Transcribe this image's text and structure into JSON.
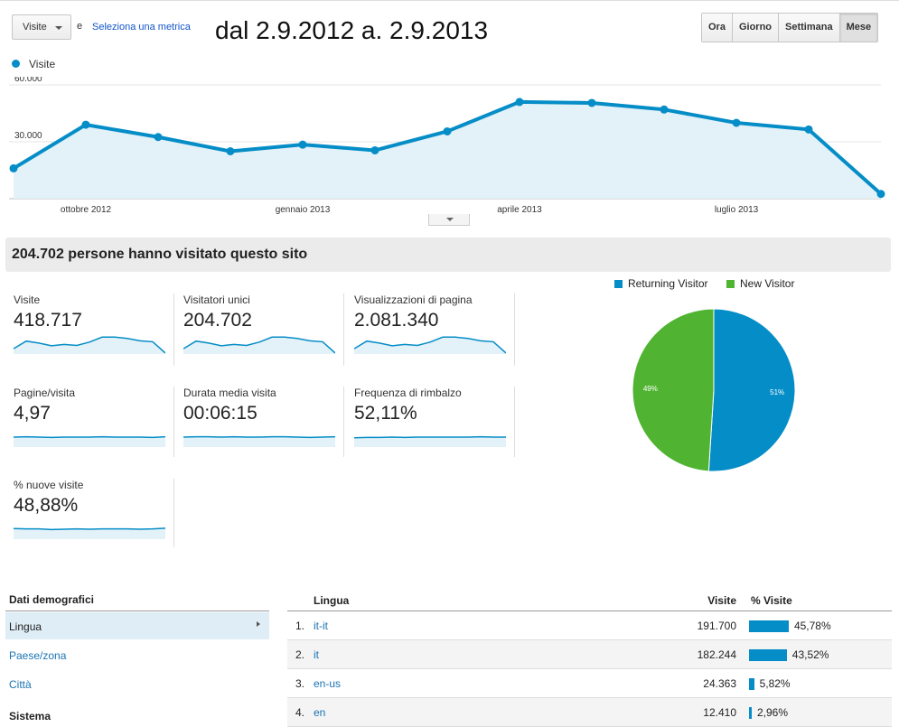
{
  "header": {
    "metric_select": "Visite",
    "and_label": "e",
    "select_metric_link": "Seleziona una metrica",
    "date_range": "dal 2.9.2012 a. 2.9.2013",
    "periods": [
      {
        "label": "Ora",
        "active": false
      },
      {
        "label": "Giorno",
        "active": false
      },
      {
        "label": "Settimana",
        "active": false
      },
      {
        "label": "Mese",
        "active": true
      }
    ]
  },
  "chart_data": {
    "type": "area",
    "series": [
      {
        "name": "Visite",
        "color": "#058dc7",
        "values": [
          16000,
          39000,
          32500,
          25000,
          28500,
          25500,
          35500,
          51000,
          50500,
          47000,
          40000,
          36500,
          2500
        ]
      }
    ],
    "x_ticks": [
      "ottobre 2012",
      "gennaio 2013",
      "aprile 2013",
      "luglio 2013"
    ],
    "y_ticks": [
      "60.000",
      "30.000"
    ],
    "ylim": [
      0,
      60000
    ],
    "grid": true
  },
  "summary": "204.702 persone hanno visitato questo sito",
  "metrics": [
    {
      "label": "Visite",
      "value": "418.717",
      "trend": [
        16,
        39,
        33,
        25,
        29,
        26,
        36,
        51,
        51,
        47,
        40,
        37,
        3
      ]
    },
    {
      "label": "Visitatori unici",
      "value": "204.702",
      "trend": [
        16,
        39,
        33,
        25,
        29,
        26,
        36,
        51,
        51,
        47,
        40,
        37,
        3
      ]
    },
    {
      "label": "Visualizzazioni di pagina",
      "value": "2.081.340",
      "trend": [
        16,
        39,
        33,
        25,
        29,
        26,
        36,
        51,
        51,
        47,
        40,
        37,
        3
      ]
    },
    {
      "label": "Pagine/visita",
      "value": "4,97",
      "trend": [
        30,
        31,
        30,
        29,
        30,
        30,
        30,
        31,
        30,
        30,
        30,
        29,
        31
      ]
    },
    {
      "label": "Durata media visita",
      "value": "00:06:15",
      "trend": [
        30,
        31,
        31,
        30,
        31,
        30,
        30,
        31,
        31,
        30,
        29,
        30,
        31
      ]
    },
    {
      "label": "Frequenza di rimbalzo",
      "value": "52,11%",
      "trend": [
        28,
        29,
        29,
        30,
        29,
        30,
        30,
        30,
        30,
        30,
        31,
        30,
        30
      ]
    },
    {
      "label": "% nuove visite",
      "value": "48,88%",
      "trend": [
        32,
        31,
        31,
        29,
        30,
        31,
        30,
        31,
        31,
        31,
        30,
        31,
        33
      ]
    }
  ],
  "pie": {
    "legend": [
      {
        "label": "Returning Visitor",
        "color": "#058dc7"
      },
      {
        "label": "New Visitor",
        "color": "#50b432"
      }
    ],
    "slices": [
      {
        "label": "51%",
        "value": 51,
        "color": "#058dc7"
      },
      {
        "label": "49%",
        "value": 49,
        "color": "#50b432"
      }
    ]
  },
  "demographics": {
    "header": "Dati demografici",
    "items": [
      {
        "label": "Lingua",
        "active": true
      },
      {
        "label": "Paese/zona",
        "active": false
      },
      {
        "label": "Città",
        "active": false
      }
    ],
    "system_header": "Sistema"
  },
  "language_table": {
    "headers": {
      "language": "Lingua",
      "visits": "Visite",
      "pct": "% Visite"
    },
    "rows": [
      {
        "index": "1.",
        "language": "it-it",
        "visits": "191.700",
        "pct": "45,78%",
        "pct_value": 45.78
      },
      {
        "index": "2.",
        "language": "it",
        "visits": "182.244",
        "pct": "43,52%",
        "pct_value": 43.52
      },
      {
        "index": "3.",
        "language": "en-us",
        "visits": "24.363",
        "pct": "5,82%",
        "pct_value": 5.82
      },
      {
        "index": "4.",
        "language": "en",
        "visits": "12.410",
        "pct": "2,96%",
        "pct_value": 2.96
      }
    ]
  }
}
